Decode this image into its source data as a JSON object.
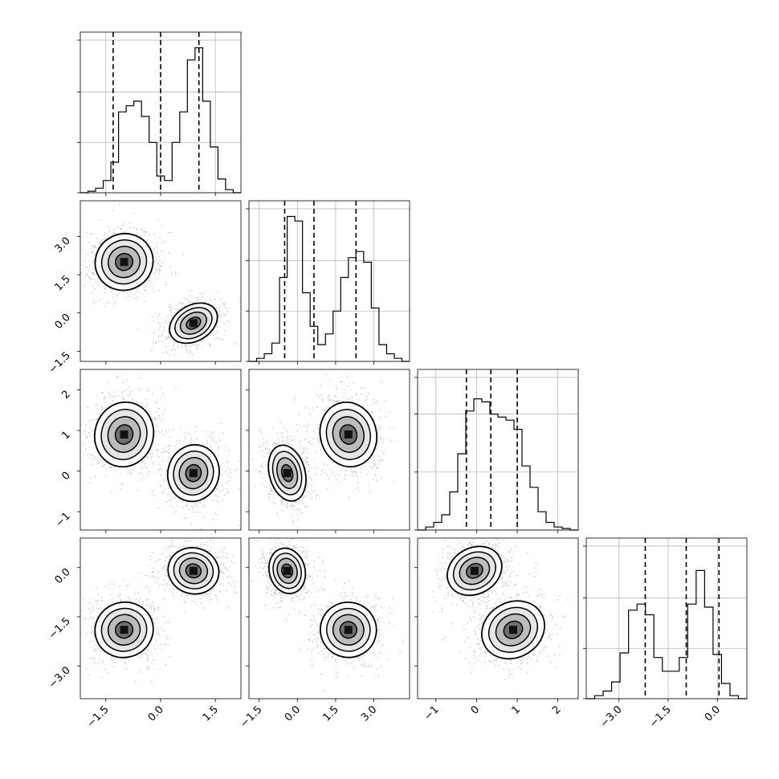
{
  "chart_data": {
    "type": "corner",
    "variables": [
      {
        "range": [
          -2.2,
          2.2
        ],
        "ticks": [
          -1.5,
          0,
          1.5
        ],
        "tick_labels": [
          "−1.5",
          "0.0",
          "1.5"
        ],
        "quantiles": [
          -1.3,
          0.0,
          1.05
        ]
      },
      {
        "range": [
          -1.9,
          4.4
        ],
        "ticks": [
          -1.5,
          0,
          1.5,
          3
        ],
        "tick_labels": [
          "−1.5",
          "0.0",
          "1.5",
          "3.0"
        ],
        "quantiles": [
          -0.5,
          0.65,
          2.3
        ]
      },
      {
        "range": [
          -1.45,
          2.5
        ],
        "ticks": [
          -1,
          0,
          1,
          2
        ],
        "tick_labels": [
          "−1",
          "0",
          "1",
          "2"
        ],
        "quantiles": [
          -0.25,
          0.35,
          1.0
        ]
      },
      {
        "range": [
          -4.0,
          0.9
        ],
        "ticks": [
          -3,
          -1.5,
          0
        ],
        "tick_labels": [
          "−3.0",
          "−1.5",
          "0.0"
        ],
        "quantiles": [
          -2.2,
          -0.95,
          0.05
        ]
      }
    ],
    "histograms": [
      {
        "bins": [
          -2.2,
          2.2
        ],
        "counts": [
          0.0,
          0.01,
          0.03,
          0.08,
          0.2,
          0.53,
          0.57,
          0.6,
          0.5,
          0.33,
          0.11,
          0.08,
          0.33,
          0.53,
          0.87,
          0.95,
          0.6,
          0.3,
          0.09,
          0.02,
          0.0
        ],
        "ymax": 1.0,
        "yticks": [
          0,
          0.33,
          0.66,
          1.0
        ]
      },
      {
        "bins": [
          -1.9,
          4.4
        ],
        "counts": [
          0.0,
          0.02,
          0.05,
          0.12,
          0.55,
          0.95,
          0.92,
          0.45,
          0.23,
          0.11,
          0.18,
          0.33,
          0.55,
          0.68,
          0.72,
          0.65,
          0.35,
          0.11,
          0.05,
          0.02,
          0.0
        ],
        "ymax": 1.0,
        "yticks": [
          0,
          0.33,
          0.66,
          1.0
        ]
      },
      {
        "bins": [
          -1.45,
          2.5
        ],
        "counts": [
          0.0,
          0.02,
          0.05,
          0.1,
          0.25,
          0.5,
          0.78,
          0.86,
          0.84,
          0.76,
          0.74,
          0.72,
          0.66,
          0.42,
          0.28,
          0.12,
          0.05,
          0.02,
          0.01,
          0.0
        ],
        "ymax": 1.0,
        "yticks": [
          0,
          0.38,
          0.76,
          1.0
        ]
      },
      {
        "bins": [
          -4.0,
          0.9
        ],
        "counts": [
          0.0,
          0.02,
          0.05,
          0.11,
          0.3,
          0.58,
          0.62,
          0.55,
          0.27,
          0.18,
          0.18,
          0.27,
          0.62,
          0.84,
          0.6,
          0.29,
          0.1,
          0.02,
          0.0
        ],
        "ymax": 1.0,
        "yticks": [
          0,
          0.33,
          0.66,
          1.0
        ]
      }
    ],
    "clusters": [
      {
        "center": [
          -1.0,
          2.0,
          0.9,
          -1.9
        ],
        "spread": [
          0.4,
          0.55,
          0.4,
          0.42
        ]
      },
      {
        "center": [
          0.9,
          -0.4,
          -0.05,
          -0.1
        ],
        "spread": [
          0.35,
          0.35,
          0.35,
          0.35
        ]
      }
    ],
    "grid": true,
    "colors": {
      "ink": "#000000",
      "grid": "#b0b0b0",
      "points": "#9a9a9a"
    }
  }
}
